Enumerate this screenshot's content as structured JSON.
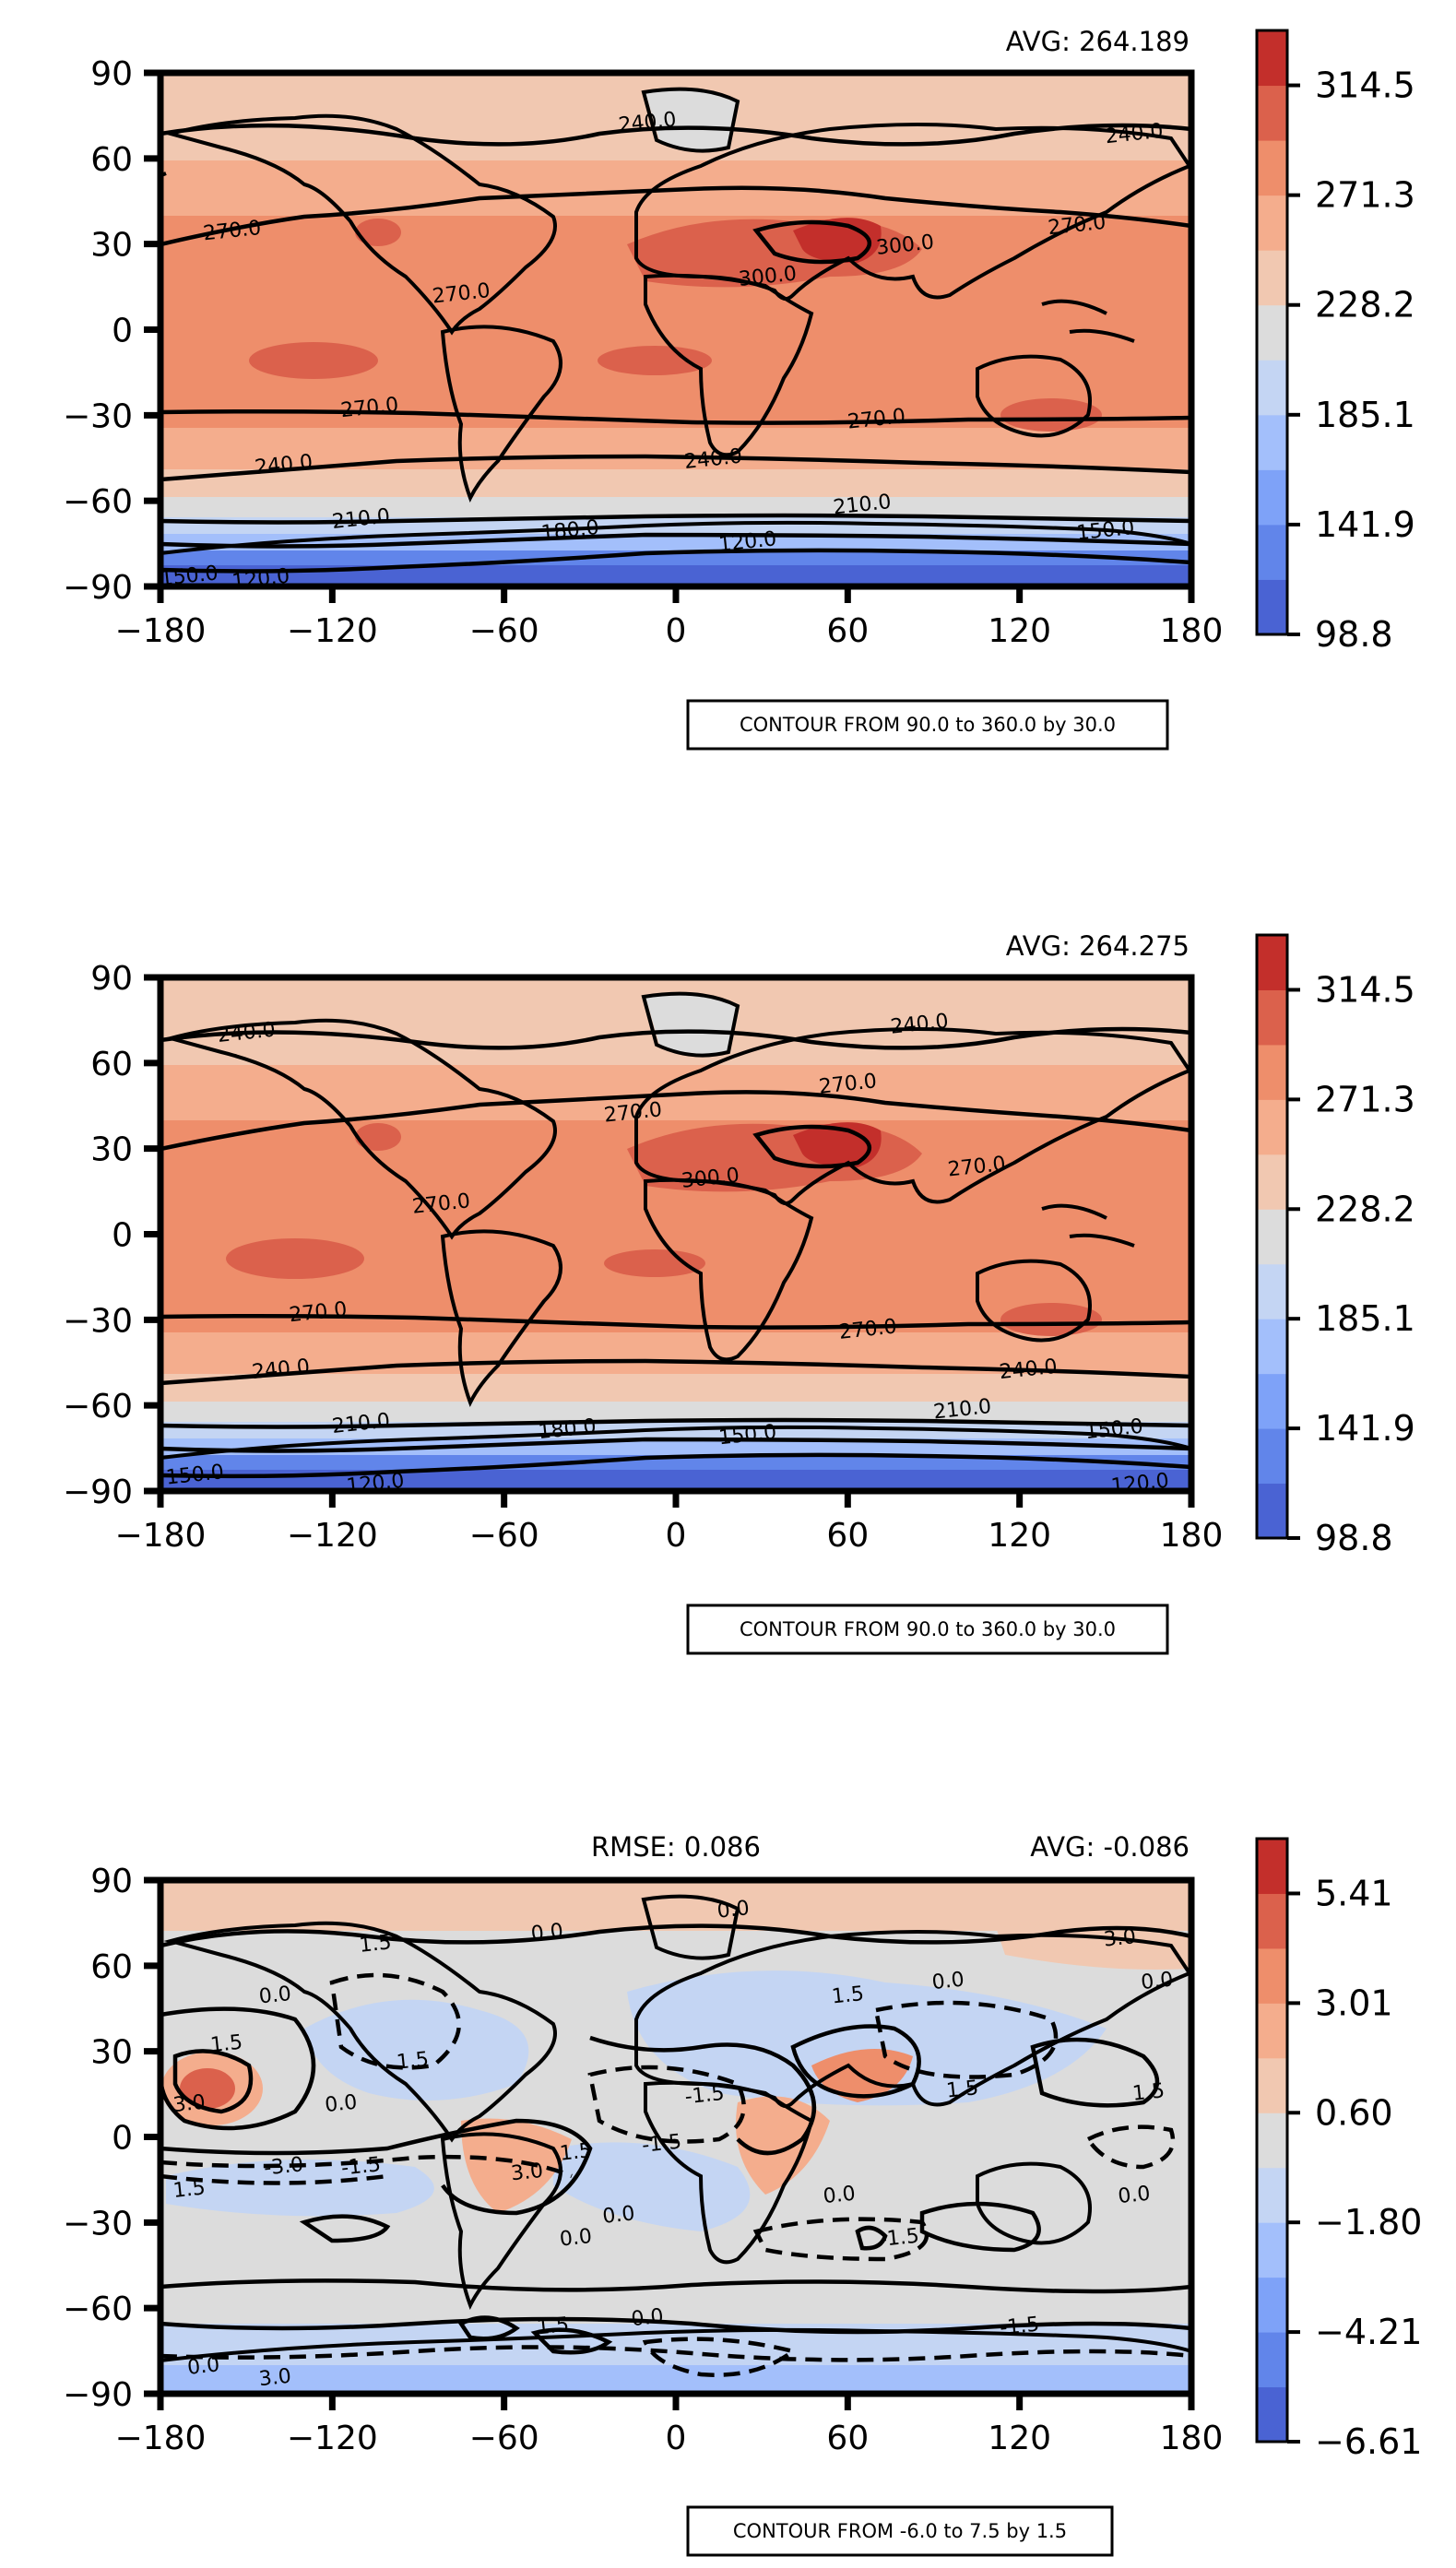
{
  "colors": {
    "cmap": [
      "#4a63d3",
      "#6185ea",
      "#7ea2f8",
      "#a3bffb",
      "#c4d5f3",
      "#dcdcdc",
      "#f1c8b1",
      "#f4ad8d",
      "#ee8e6b",
      "#db614c",
      "#c32f2b"
    ],
    "contour_line": "#000000"
  },
  "chart_data": [
    {
      "type": "heatmap",
      "panel": "top",
      "avg_label": "AVG: 264.189",
      "rmse_label": "",
      "x_ticks": [
        "−180",
        "−120",
        "−60",
        "0",
        "60",
        "120",
        "180"
      ],
      "y_ticks": [
        "90",
        "60",
        "30",
        "0",
        "−30",
        "−60",
        "−90"
      ],
      "xlim": [
        -180,
        180
      ],
      "ylim": [
        -90,
        90
      ],
      "colorbar_ticks": [
        "314.5",
        "271.3",
        "228.2",
        "185.1",
        "141.9",
        "98.8"
      ],
      "colorbar_range": [
        98.8,
        336.0
      ],
      "contour_note": "CONTOUR FROM 90.0 to 360.0 by 30.0",
      "contour_labels": [
        {
          "text": "240.0",
          "lon": -10,
          "lat": 73
        },
        {
          "text": "240.0",
          "lon": 160,
          "lat": 69
        },
        {
          "text": "270.0",
          "lon": -155,
          "lat": 35
        },
        {
          "text": "270.0",
          "lon": 140,
          "lat": 37
        },
        {
          "text": "300.0",
          "lon": 32,
          "lat": 19
        },
        {
          "text": "300.0",
          "lon": 80,
          "lat": 30
        },
        {
          "text": "270.0",
          "lon": -75,
          "lat": 13
        },
        {
          "text": "270.0",
          "lon": -107,
          "lat": -27
        },
        {
          "text": "270.0",
          "lon": 70,
          "lat": -31
        },
        {
          "text": "240.0",
          "lon": -137,
          "lat": -47
        },
        {
          "text": "240.0",
          "lon": 13,
          "lat": -45
        },
        {
          "text": "210.0",
          "lon": -110,
          "lat": -66
        },
        {
          "text": "210.0",
          "lon": 65,
          "lat": -61
        },
        {
          "text": "180.0",
          "lon": -37,
          "lat": -70
        },
        {
          "text": "150.0",
          "lon": 150,
          "lat": -70
        },
        {
          "text": "120.0",
          "lon": 25,
          "lat": -74
        },
        {
          "text": "150.0",
          "lon": -170,
          "lat": -86
        },
        {
          "text": "120.0",
          "lon": -145,
          "lat": -87
        }
      ]
    },
    {
      "type": "heatmap",
      "panel": "middle",
      "avg_label": "AVG: 264.275",
      "rmse_label": "",
      "x_ticks": [
        "−180",
        "−120",
        "−60",
        "0",
        "60",
        "120",
        "180"
      ],
      "y_ticks": [
        "90",
        "60",
        "30",
        "0",
        "−30",
        "−60",
        "−90"
      ],
      "xlim": [
        -180,
        180
      ],
      "ylim": [
        -90,
        90
      ],
      "colorbar_ticks": [
        "314.5",
        "271.3",
        "228.2",
        "185.1",
        "141.9",
        "98.8"
      ],
      "colorbar_range": [
        98.8,
        336.0
      ],
      "contour_note": "CONTOUR FROM 90.0 to 360.0 by 30.0",
      "contour_labels": [
        {
          "text": "240.0",
          "lon": -150,
          "lat": 71
        },
        {
          "text": "240.0",
          "lon": 85,
          "lat": 74
        },
        {
          "text": "270.0",
          "lon": 60,
          "lat": 53
        },
        {
          "text": "270.0",
          "lon": -15,
          "lat": 43
        },
        {
          "text": "300.0",
          "lon": 12,
          "lat": 20
        },
        {
          "text": "270.0",
          "lon": 105,
          "lat": 24
        },
        {
          "text": "270.0",
          "lon": -82,
          "lat": 11
        },
        {
          "text": "270.0",
          "lon": -125,
          "lat": -27
        },
        {
          "text": "270.0",
          "lon": 67,
          "lat": -33
        },
        {
          "text": "240.0",
          "lon": -138,
          "lat": -47
        },
        {
          "text": "240.0",
          "lon": 123,
          "lat": -47
        },
        {
          "text": "210.0",
          "lon": -110,
          "lat": -66
        },
        {
          "text": "210.0",
          "lon": 100,
          "lat": -61
        },
        {
          "text": "180.0",
          "lon": -38,
          "lat": -68
        },
        {
          "text": "150.0",
          "lon": 153,
          "lat": -68
        },
        {
          "text": "150.0",
          "lon": 25,
          "lat": -70
        },
        {
          "text": "150.0",
          "lon": -168,
          "lat": -84
        },
        {
          "text": "120.0",
          "lon": -105,
          "lat": -87
        },
        {
          "text": "120.0",
          "lon": 162,
          "lat": -87
        }
      ]
    },
    {
      "type": "heatmap",
      "panel": "bottom",
      "avg_label": "AVG: -0.086",
      "rmse_label": "RMSE: 0.086",
      "x_ticks": [
        "−180",
        "−120",
        "−60",
        "0",
        "60",
        "120",
        "180"
      ],
      "y_ticks": [
        "90",
        "60",
        "30",
        "0",
        "−30",
        "−60",
        "−90"
      ],
      "xlim": [
        -180,
        180
      ],
      "ylim": [
        -90,
        90
      ],
      "colorbar_ticks": [
        "5.41",
        "3.01",
        "0.60",
        "−1.80",
        "−4.21",
        "−6.61"
      ],
      "colorbar_range": [
        -6.61,
        6.61
      ],
      "contour_note": "CONTOUR FROM -6.0 to 7.5 by 1.5",
      "contour_labels": [
        {
          "text": "0.0",
          "lon": 20,
          "lat": 80
        },
        {
          "text": "0.0",
          "lon": -45,
          "lat": 72
        },
        {
          "text": "1.5",
          "lon": -105,
          "lat": 68
        },
        {
          "text": "3.0",
          "lon": 155,
          "lat": 70
        },
        {
          "text": "0.0",
          "lon": 168,
          "lat": 55
        },
        {
          "text": "0.0",
          "lon": -140,
          "lat": 50
        },
        {
          "text": "0.0",
          "lon": 95,
          "lat": 55
        },
        {
          "text": "1.5",
          "lon": 60,
          "lat": 50
        },
        {
          "text": "1.5",
          "lon": -157,
          "lat": 33
        },
        {
          "text": "0.0",
          "lon": -117,
          "lat": 12
        },
        {
          "text": "1.5",
          "lon": -92,
          "lat": 27
        },
        {
          "text": "-1.5",
          "lon": 10,
          "lat": 15
        },
        {
          "text": "1.5",
          "lon": 100,
          "lat": 17
        },
        {
          "text": "1.5",
          "lon": 165,
          "lat": 16
        },
        {
          "text": "3.0",
          "lon": -170,
          "lat": 12
        },
        {
          "text": "-3.0",
          "lon": -137,
          "lat": -10
        },
        {
          "text": "-1.5",
          "lon": -110,
          "lat": -10
        },
        {
          "text": "1.5",
          "lon": -170,
          "lat": -18
        },
        {
          "text": "3.0",
          "lon": -52,
          "lat": -12
        },
        {
          "text": "1.5",
          "lon": -35,
          "lat": -5
        },
        {
          "text": "-1.5",
          "lon": -5,
          "lat": -2
        },
        {
          "text": "0.0",
          "lon": 57,
          "lat": -20
        },
        {
          "text": "0.0",
          "lon": -20,
          "lat": -27
        },
        {
          "text": "0.0",
          "lon": -35,
          "lat": -35
        },
        {
          "text": "-1.5",
          "lon": 78,
          "lat": -35
        },
        {
          "text": "0.0",
          "lon": 160,
          "lat": -20
        },
        {
          "text": "1.5",
          "lon": -43,
          "lat": -66
        },
        {
          "text": "0.0",
          "lon": -10,
          "lat": -63
        },
        {
          "text": "-1.5",
          "lon": 120,
          "lat": -66
        },
        {
          "text": "0.0",
          "lon": -165,
          "lat": -80
        },
        {
          "text": "3.0",
          "lon": -140,
          "lat": -84
        }
      ]
    }
  ]
}
